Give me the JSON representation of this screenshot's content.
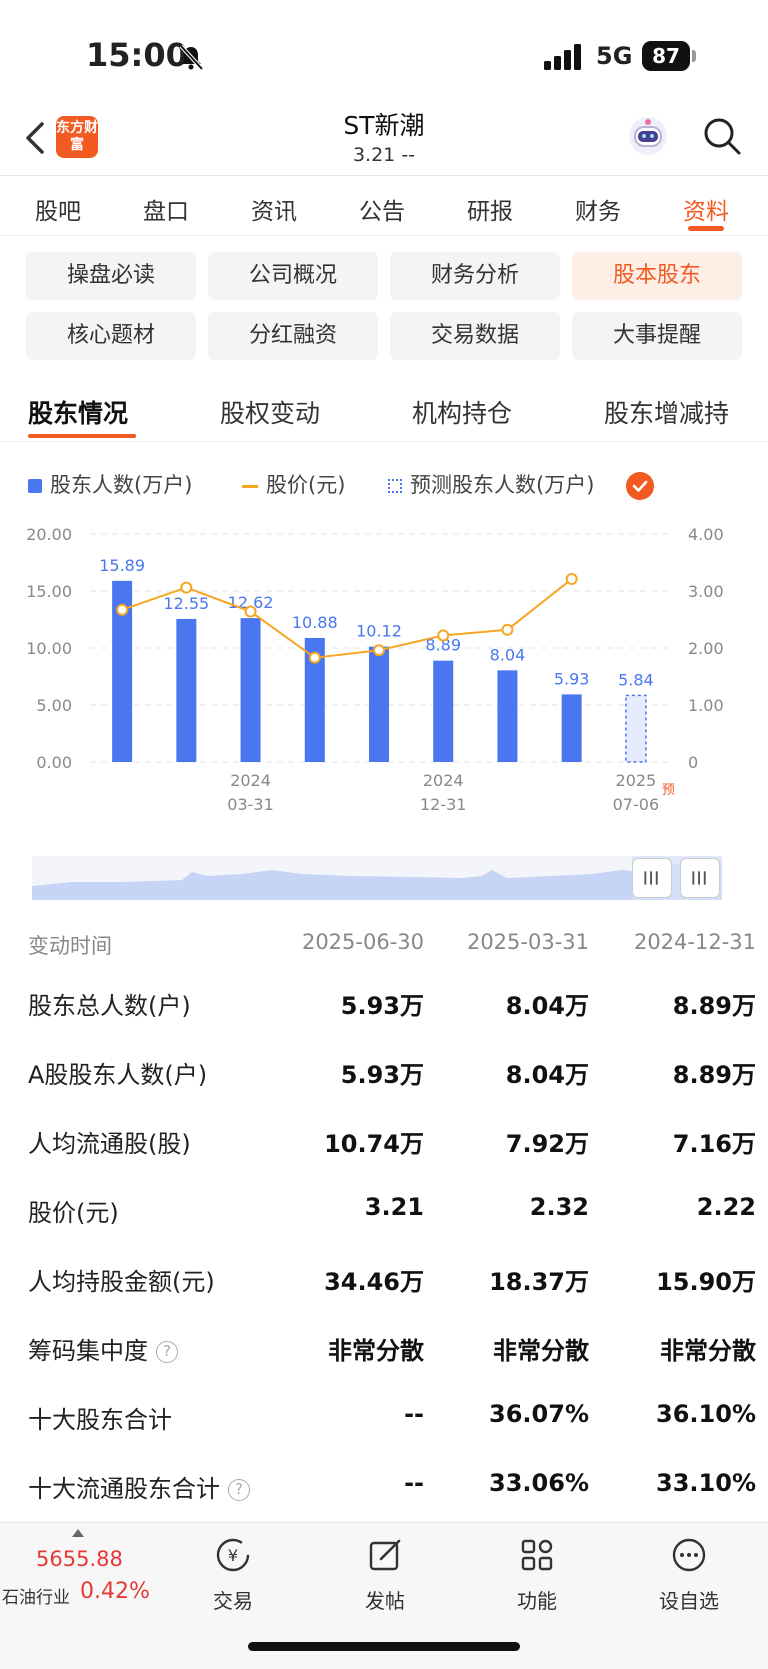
{
  "status": {
    "time": "15:00",
    "network": "5G",
    "battery": "87"
  },
  "header": {
    "logo": "东方财富",
    "title": "ST新潮",
    "subtitle": "3.21  --"
  },
  "main_tabs": [
    "股吧",
    "盘口",
    "资讯",
    "公告",
    "研报",
    "财务",
    "资料"
  ],
  "main_tab_active": "资料",
  "sub_buttons": [
    "操盘必读",
    "公司概况",
    "财务分析",
    "股本股东",
    "核心题材",
    "分红融资",
    "交易数据",
    "大事提醒"
  ],
  "sub_button_active": "股本股东",
  "section_tabs": [
    "股东情况",
    "股权变动",
    "机构持仓",
    "股东增减持"
  ],
  "section_tab_active": "股东情况",
  "legend": {
    "holders": "股东人数(万户)",
    "price": "股价(元)",
    "forecast": "预测股东人数(万户)"
  },
  "colors": {
    "accent": "#f25a22",
    "bar": "#4a77f0",
    "line": "#f5a623"
  },
  "chart_data": {
    "type": "bar",
    "x_tick_labels": [
      {
        "year": "2024",
        "date": "03-31"
      },
      {
        "year": "2024",
        "date": "12-31"
      },
      {
        "year": "2025",
        "date": "07-06"
      }
    ],
    "forecast_mark": "预",
    "series": [
      {
        "name": "股东人数(万户)",
        "values": [
          15.89,
          12.55,
          12.62,
          10.88,
          10.12,
          8.89,
          8.04,
          5.93,
          null
        ]
      },
      {
        "name": "预测股东人数(万户)",
        "values": [
          null,
          null,
          null,
          null,
          null,
          null,
          null,
          null,
          5.84
        ]
      },
      {
        "name": "股价(元)",
        "type": "line",
        "values": [
          2.67,
          3.06,
          2.64,
          1.83,
          1.96,
          2.22,
          2.32,
          3.21,
          null
        ]
      }
    ],
    "y_left": {
      "ticks": [
        "0.00",
        "5.00",
        "10.00",
        "15.00",
        "20.00"
      ],
      "range": [
        0,
        20
      ]
    },
    "y_right": {
      "ticks": [
        "0",
        "1.00",
        "2.00",
        "3.00",
        "4.00"
      ],
      "range": [
        0,
        4
      ]
    },
    "data_labels": [
      "15.89",
      "12.55",
      "12.62",
      "10.88",
      "10.12",
      "8.89",
      "8.04",
      "5.93",
      "5.84"
    ]
  },
  "table": {
    "header": {
      "label": "变动时间",
      "cols": [
        "2025-06-30",
        "2025-03-31",
        "2024-12-31"
      ]
    },
    "rows": [
      {
        "label": "股东总人数(户)",
        "vals": [
          "5.93万",
          "8.04万",
          "8.89万"
        ]
      },
      {
        "label": "A股股东人数(户)",
        "vals": [
          "5.93万",
          "8.04万",
          "8.89万"
        ]
      },
      {
        "label": "人均流通股(股)",
        "vals": [
          "10.74万",
          "7.92万",
          "7.16万"
        ]
      },
      {
        "label": "股价(元)",
        "vals": [
          "3.21",
          "2.32",
          "2.22"
        ]
      },
      {
        "label": "人均持股金额(元)",
        "vals": [
          "34.46万",
          "18.37万",
          "15.90万"
        ]
      },
      {
        "label": "筹码集中度",
        "help": "?",
        "vals": [
          "非常分散",
          "非常分散",
          "非常分散"
        ]
      },
      {
        "label": "十大股东合计",
        "vals": [
          "--",
          "36.07%",
          "36.10%"
        ]
      },
      {
        "label": "十大流通股东合计",
        "help": "?",
        "vals": [
          "--",
          "33.06%",
          "33.10%"
        ]
      }
    ]
  },
  "bottom": {
    "index_value": "5655.88",
    "industry": "石油行业",
    "industry_pct": "0.42%",
    "items": [
      "交易",
      "发帖",
      "功能",
      "设自选"
    ]
  }
}
